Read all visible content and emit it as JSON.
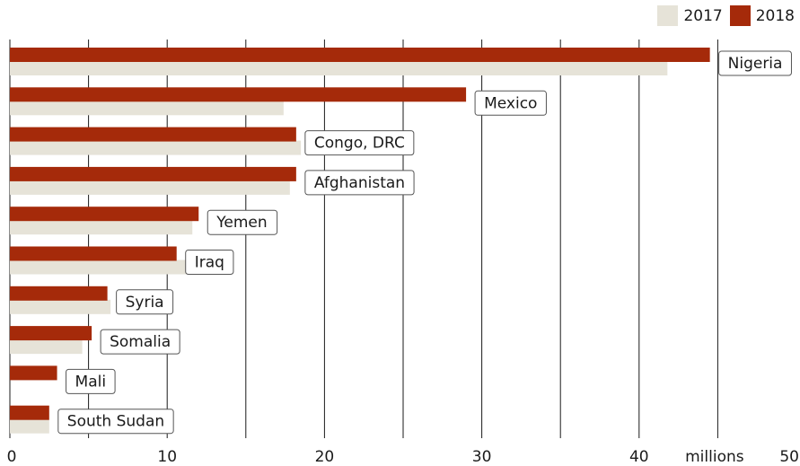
{
  "chart_data": {
    "type": "bar",
    "orientation": "horizontal",
    "categories": [
      "Nigeria",
      "Mexico",
      "Congo, DRC",
      "Afghanistan",
      "Yemen",
      "Iraq",
      "Syria",
      "Somalia",
      "Mali",
      "South Sudan"
    ],
    "series": [
      {
        "name": "2018",
        "color": "#a52a0a",
        "values": [
          44.5,
          29,
          18.2,
          18.2,
          12,
          10.6,
          6.2,
          5.2,
          3,
          2.5
        ]
      },
      {
        "name": "2017",
        "color": "#e6e3d8",
        "values": [
          41.8,
          17.4,
          18.5,
          17.8,
          11.6,
          12.6,
          6.4,
          4.6,
          null,
          2.5
        ]
      }
    ],
    "xlim": [
      0,
      50
    ],
    "xticks": [
      0,
      10,
      20,
      30,
      40,
      50
    ],
    "gridlines": [
      0,
      5,
      10,
      15,
      20,
      25,
      30,
      35,
      40,
      45
    ],
    "unit_label": "millions",
    "legend_position": "top-right",
    "legend": [
      {
        "label": "2017",
        "color": "#e6e3d8"
      },
      {
        "label": "2018",
        "color": "#a52a0a"
      }
    ]
  }
}
